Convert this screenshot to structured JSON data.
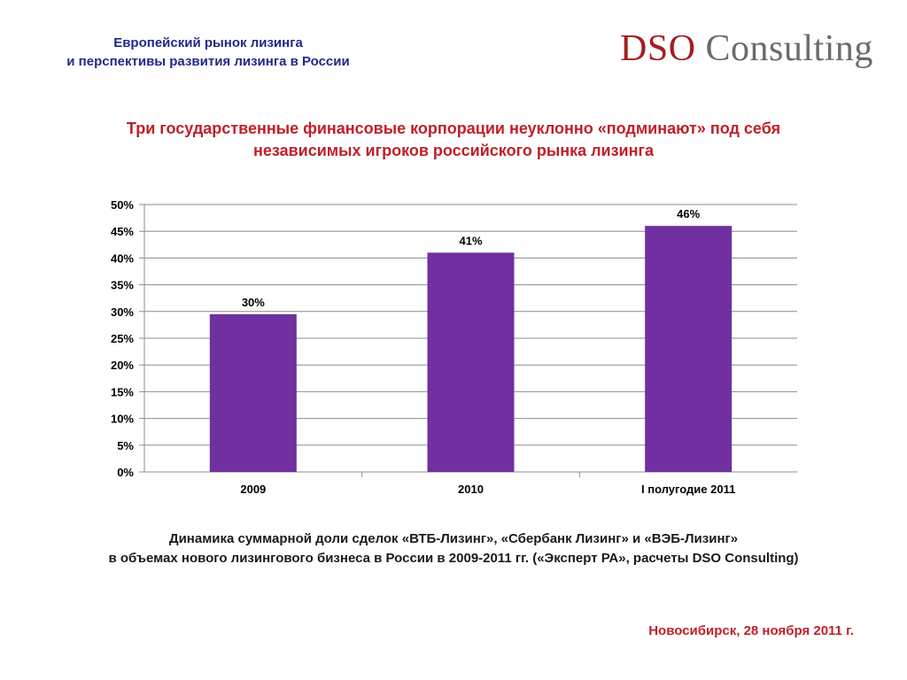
{
  "header": {
    "title_line1": "Европейский рынок лизинга",
    "title_line2": "и перспективы развития лизинга в России"
  },
  "logo": {
    "part1": "DSO",
    "part2": "Consulting"
  },
  "headline": {
    "line1": "Три государственные финансовые корпорации неуклонно «подминают» под себя",
    "line2": "независимых игроков российского рынка лизинга"
  },
  "chart_data": {
    "type": "bar",
    "categories": [
      "2009",
      "2010",
      "I полугодие 2011"
    ],
    "values": [
      0.295,
      0.41,
      0.46
    ],
    "data_labels": [
      "30%",
      "41%",
      "46%"
    ],
    "yticks": [
      "0%",
      "5%",
      "10%",
      "15%",
      "20%",
      "25%",
      "30%",
      "35%",
      "40%",
      "45%",
      "50%"
    ],
    "ylim": [
      0,
      0.5
    ],
    "grid": true,
    "bar_color": "#7030a0"
  },
  "caption": {
    "line1": "Динамика суммарной доли сделок «ВТБ-Лизинг», «Сбербанк Лизинг» и «ВЭБ-Лизинг»",
    "line2": "в объемах нового лизингового бизнеса в России в 2009-2011 гг. («Эксперт РА», расчеты DSO Consulting)"
  },
  "footer": {
    "text": "Новосибирск, 28 ноября 2011 г."
  }
}
